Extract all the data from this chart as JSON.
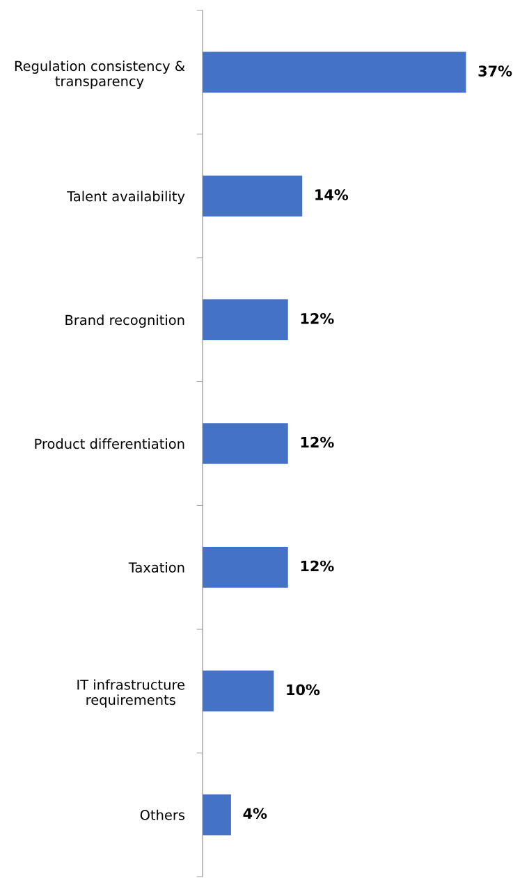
{
  "chart_data": {
    "type": "bar",
    "orientation": "horizontal",
    "categories": [
      "Regulation consistency &\ntransparency",
      "Talent availability",
      "Brand recognition",
      "Product differentiation",
      "Taxation",
      "IT infrastructure\nrequirements",
      "Others"
    ],
    "values": [
      37,
      14,
      12,
      12,
      12,
      10,
      4
    ],
    "value_labels": [
      "37%",
      "14%",
      "12%",
      "12%",
      "12%",
      "10%",
      "4%"
    ],
    "color": "#4472c4",
    "grid": false
  }
}
